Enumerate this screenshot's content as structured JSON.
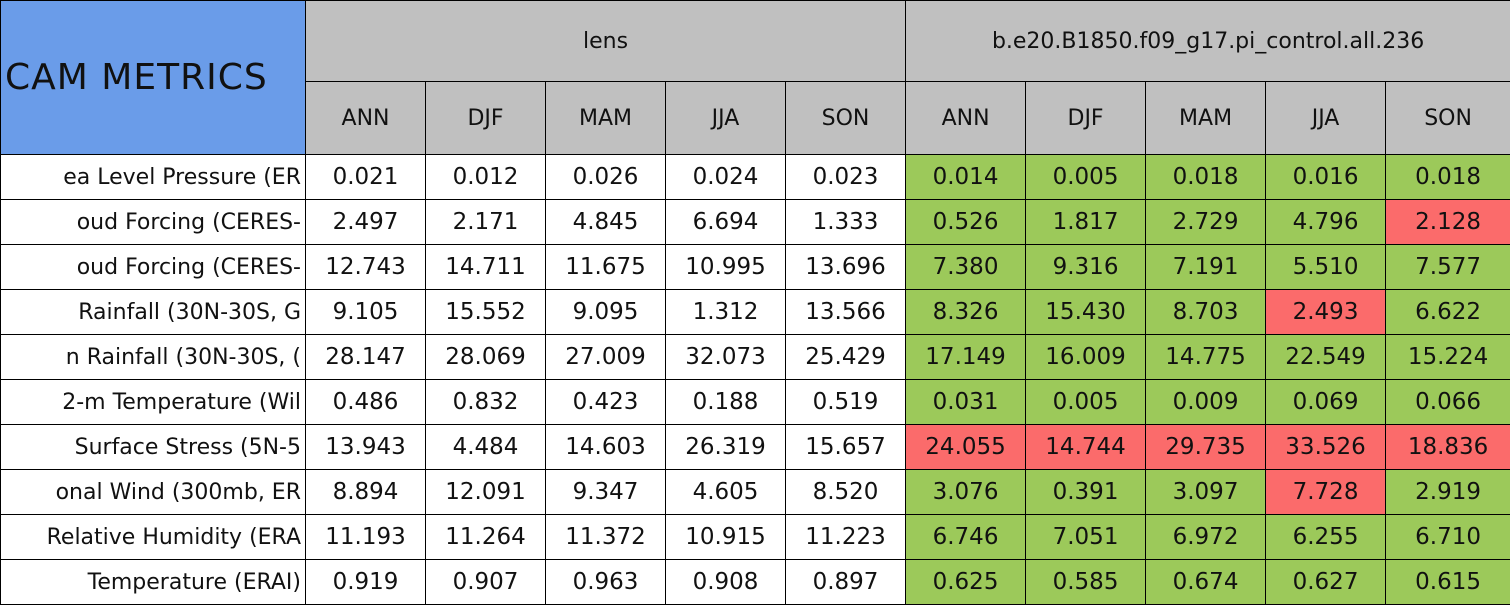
{
  "header": {
    "title": "CAM METRICS",
    "groups": [
      {
        "name": "lens",
        "seasons": [
          "ANN",
          "DJF",
          "MAM",
          "JJA",
          "SON"
        ]
      },
      {
        "name": "b.e20.B1850.f09_g17.pi_control.all.236",
        "seasons": [
          "ANN",
          "DJF",
          "MAM",
          "JJA",
          "SON"
        ]
      }
    ]
  },
  "table": {
    "rows": [
      {
        "label": "ea Level Pressure (ER",
        "cells": [
          "0.021",
          "0.012",
          "0.026",
          "0.024",
          "0.023",
          "0.014",
          "0.005",
          "0.018",
          "0.016",
          "0.018"
        ],
        "fills": [
          "#ffffff",
          "#ffffff",
          "#ffffff",
          "#ffffff",
          "#ffffff",
          "#9cc95a",
          "#9cc95a",
          "#9cc95a",
          "#9cc95a",
          "#9cc95a"
        ]
      },
      {
        "label": "oud Forcing (CERES-",
        "cells": [
          "2.497",
          "2.171",
          "4.845",
          "6.694",
          "1.333",
          "0.526",
          "1.817",
          "2.729",
          "4.796",
          "2.128"
        ],
        "fills": [
          "#ffffff",
          "#ffffff",
          "#ffffff",
          "#ffffff",
          "#ffffff",
          "#9cc95a",
          "#9cc95a",
          "#9cc95a",
          "#9cc95a",
          "#fb6b6b"
        ]
      },
      {
        "label": "oud Forcing (CERES-",
        "cells": [
          "12.743",
          "14.711",
          "11.675",
          "10.995",
          "13.696",
          "7.380",
          "9.316",
          "7.191",
          "5.510",
          "7.577"
        ],
        "fills": [
          "#ffffff",
          "#ffffff",
          "#ffffff",
          "#ffffff",
          "#ffffff",
          "#9cc95a",
          "#9cc95a",
          "#9cc95a",
          "#9cc95a",
          "#9cc95a"
        ]
      },
      {
        "label": "Rainfall (30N-30S, G",
        "cells": [
          "9.105",
          "15.552",
          "9.095",
          "1.312",
          "13.566",
          "8.326",
          "15.430",
          "8.703",
          "2.493",
          "6.622"
        ],
        "fills": [
          "#ffffff",
          "#ffffff",
          "#ffffff",
          "#ffffff",
          "#ffffff",
          "#9cc95a",
          "#9cc95a",
          "#9cc95a",
          "#fb6b6b",
          "#9cc95a"
        ]
      },
      {
        "label": "n Rainfall (30N-30S, (",
        "cells": [
          "28.147",
          "28.069",
          "27.009",
          "32.073",
          "25.429",
          "17.149",
          "16.009",
          "14.775",
          "22.549",
          "15.224"
        ],
        "fills": [
          "#ffffff",
          "#ffffff",
          "#ffffff",
          "#ffffff",
          "#ffffff",
          "#9cc95a",
          "#9cc95a",
          "#9cc95a",
          "#9cc95a",
          "#9cc95a"
        ]
      },
      {
        "label": "2-m Temperature (Wil",
        "cells": [
          "0.486",
          "0.832",
          "0.423",
          "0.188",
          "0.519",
          "0.031",
          "0.005",
          "0.009",
          "0.069",
          "0.066"
        ],
        "fills": [
          "#ffffff",
          "#ffffff",
          "#ffffff",
          "#ffffff",
          "#ffffff",
          "#9cc95a",
          "#9cc95a",
          "#9cc95a",
          "#9cc95a",
          "#9cc95a"
        ]
      },
      {
        "label": "Surface Stress (5N-5",
        "cells": [
          "13.943",
          "4.484",
          "14.603",
          "26.319",
          "15.657",
          "24.055",
          "14.744",
          "29.735",
          "33.526",
          "18.836"
        ],
        "fills": [
          "#ffffff",
          "#ffffff",
          "#ffffff",
          "#ffffff",
          "#ffffff",
          "#fb6b6b",
          "#fb6b6b",
          "#fb6b6b",
          "#fb6b6b",
          "#fb6b6b"
        ]
      },
      {
        "label": "onal Wind (300mb, ER",
        "cells": [
          "8.894",
          "12.091",
          "9.347",
          "4.605",
          "8.520",
          "3.076",
          "0.391",
          "3.097",
          "7.728",
          "2.919"
        ],
        "fills": [
          "#ffffff",
          "#ffffff",
          "#ffffff",
          "#ffffff",
          "#ffffff",
          "#9cc95a",
          "#9cc95a",
          "#9cc95a",
          "#fb6b6b",
          "#9cc95a"
        ]
      },
      {
        "label": "Relative Humidity (ERA",
        "cells": [
          "11.193",
          "11.264",
          "11.372",
          "10.915",
          "11.223",
          "6.746",
          "7.051",
          "6.972",
          "6.255",
          "6.710"
        ],
        "fills": [
          "#ffffff",
          "#ffffff",
          "#ffffff",
          "#ffffff",
          "#ffffff",
          "#9cc95a",
          "#9cc95a",
          "#9cc95a",
          "#9cc95a",
          "#9cc95a"
        ]
      },
      {
        "label": "Temperature (ERAI)",
        "cells": [
          "0.919",
          "0.907",
          "0.963",
          "0.908",
          "0.897",
          "0.625",
          "0.585",
          "0.674",
          "0.627",
          "0.615"
        ],
        "fills": [
          "#ffffff",
          "#ffffff",
          "#ffffff",
          "#ffffff",
          "#ffffff",
          "#9cc95a",
          "#9cc95a",
          "#9cc95a",
          "#9cc95a",
          "#9cc95a"
        ]
      }
    ]
  }
}
